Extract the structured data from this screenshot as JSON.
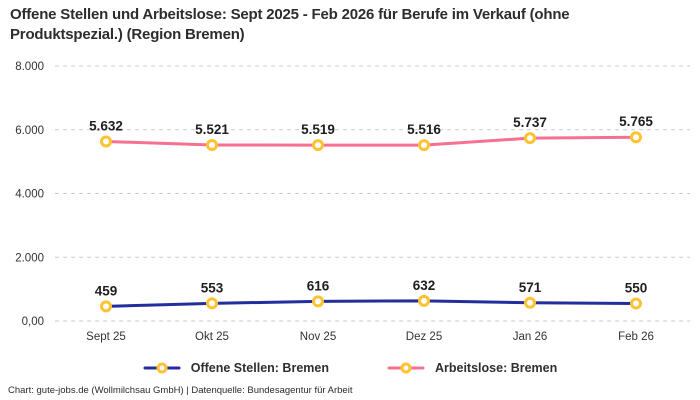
{
  "title": "Offene Stellen und Arbeitslose: Sept 2025 - Feb 2026 für Berufe im Verkauf (ohne Produktspezial.) (Region Bremen)",
  "footer": "Chart: gute-jobs.de (Wollmilchsau GmbH) | Datenquelle: Bundesagentur für Arbeit",
  "colors": {
    "grid": "#cbcbcb",
    "marker_ring": "#ffc233",
    "marker_fill": "#ffffff",
    "open_positions_line": "#232e9d",
    "unemployed_line": "#f5718f",
    "tick_text": "#333333",
    "value_label_text": "#1e1e1e"
  },
  "chart_data": {
    "type": "line",
    "title": "Offene Stellen und Arbeitslose: Sept 2025 - Feb 2026 für Berufe im Verkauf (ohne Produktspezial.) (Region Bremen)",
    "categories": [
      "Sept 25",
      "Okt 25",
      "Nov 25",
      "Dez 25",
      "Jan 26",
      "Feb 26"
    ],
    "series": [
      {
        "name": "Offene Stellen: Bremen",
        "color": "#232e9d",
        "values": [
          459,
          553,
          616,
          632,
          571,
          550
        ],
        "labels": [
          "459",
          "553",
          "616",
          "632",
          "571",
          "550"
        ]
      },
      {
        "name": "Arbeitslose: Bremen",
        "color": "#f5718f",
        "values": [
          5632,
          5521,
          5519,
          5516,
          5737,
          5765
        ],
        "labels": [
          "5.632",
          "5.521",
          "5.519",
          "5.516",
          "5.737",
          "5.765"
        ]
      }
    ],
    "marker_color": "#ffc233",
    "xlabel": "",
    "ylabel": "",
    "ylim": [
      0,
      8000
    ],
    "yticks": [
      {
        "value": 0,
        "label": "0,00"
      },
      {
        "value": 2000,
        "label": "2.000"
      },
      {
        "value": 4000,
        "label": "4.000"
      },
      {
        "value": 6000,
        "label": "6.000"
      },
      {
        "value": 8000,
        "label": "8.000"
      }
    ],
    "grid": "horizontal-dashed",
    "legend_position": "bottom"
  }
}
